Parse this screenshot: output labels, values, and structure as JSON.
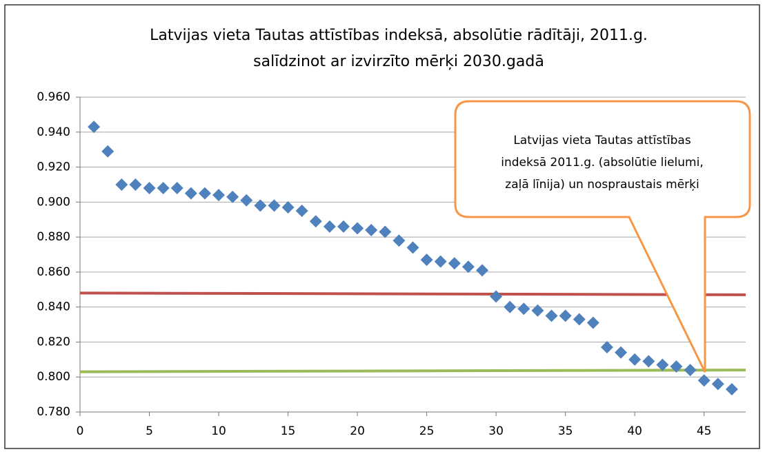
{
  "chart_data": {
    "type": "scatter",
    "title": [
      "Latvijas vieta Tautas attīstības indeksā, absolūtie rādītāji, 2011.g.",
      "salīdzinot ar izvirzīto mērķi 2030.gadā"
    ],
    "annotation": [
      "Latvijas vieta Tautas attīstības",
      "indeksā 2011.g. (absolūtie lielumi,",
      "zaļā līnija) un nospraustais mērķi"
    ],
    "series": [
      {
        "kind": "markers",
        "color": "#4f81bd",
        "x": [
          1,
          2,
          3,
          4,
          5,
          6,
          7,
          8,
          9,
          10,
          11,
          12,
          13,
          14,
          15,
          16,
          17,
          18,
          19,
          20,
          21,
          22,
          23,
          24,
          25,
          26,
          27,
          28,
          29,
          30,
          31,
          32,
          33,
          34,
          35,
          36,
          37,
          38,
          39,
          40,
          41,
          42,
          43,
          44,
          45,
          46,
          47
        ],
        "values": [
          0.943,
          0.929,
          0.91,
          0.91,
          0.908,
          0.908,
          0.908,
          0.905,
          0.905,
          0.904,
          0.903,
          0.901,
          0.898,
          0.898,
          0.897,
          0.895,
          0.889,
          0.886,
          0.886,
          0.885,
          0.884,
          0.883,
          0.878,
          0.874,
          0.867,
          0.866,
          0.865,
          0.863,
          0.861,
          0.846,
          0.84,
          0.839,
          0.838,
          0.835,
          0.835,
          0.833,
          0.831,
          0.817,
          0.814,
          0.81,
          0.809,
          0.807,
          0.806,
          0.804,
          0.798,
          0.796,
          0.793
        ]
      },
      {
        "kind": "line",
        "color": "#c0504d",
        "x": [
          0,
          48
        ],
        "values": [
          0.848,
          0.847
        ]
      },
      {
        "kind": "line",
        "color": "#9bbb59",
        "x": [
          0,
          48
        ],
        "values": [
          0.803,
          0.804
        ]
      }
    ],
    "xlim": [
      0,
      48
    ],
    "xticks": [
      0,
      5,
      10,
      15,
      20,
      25,
      30,
      35,
      40,
      45
    ],
    "ylim": [
      0.78,
      0.96
    ],
    "yticks": [
      {
        "value": 0.78,
        "label": "0.780"
      },
      {
        "value": 0.8,
        "label": "0.800"
      },
      {
        "value": 0.82,
        "label": "0.820"
      },
      {
        "value": 0.84,
        "label": "0.840"
      },
      {
        "value": 0.86,
        "label": "0.860"
      },
      {
        "value": 0.88,
        "label": "0.880"
      },
      {
        "value": 0.9,
        "label": "0.900"
      },
      {
        "value": 0.92,
        "label": "0.920"
      },
      {
        "value": 0.94,
        "label": "0.940"
      },
      {
        "value": 0.96,
        "label": "0.960"
      }
    ],
    "grid": true
  }
}
